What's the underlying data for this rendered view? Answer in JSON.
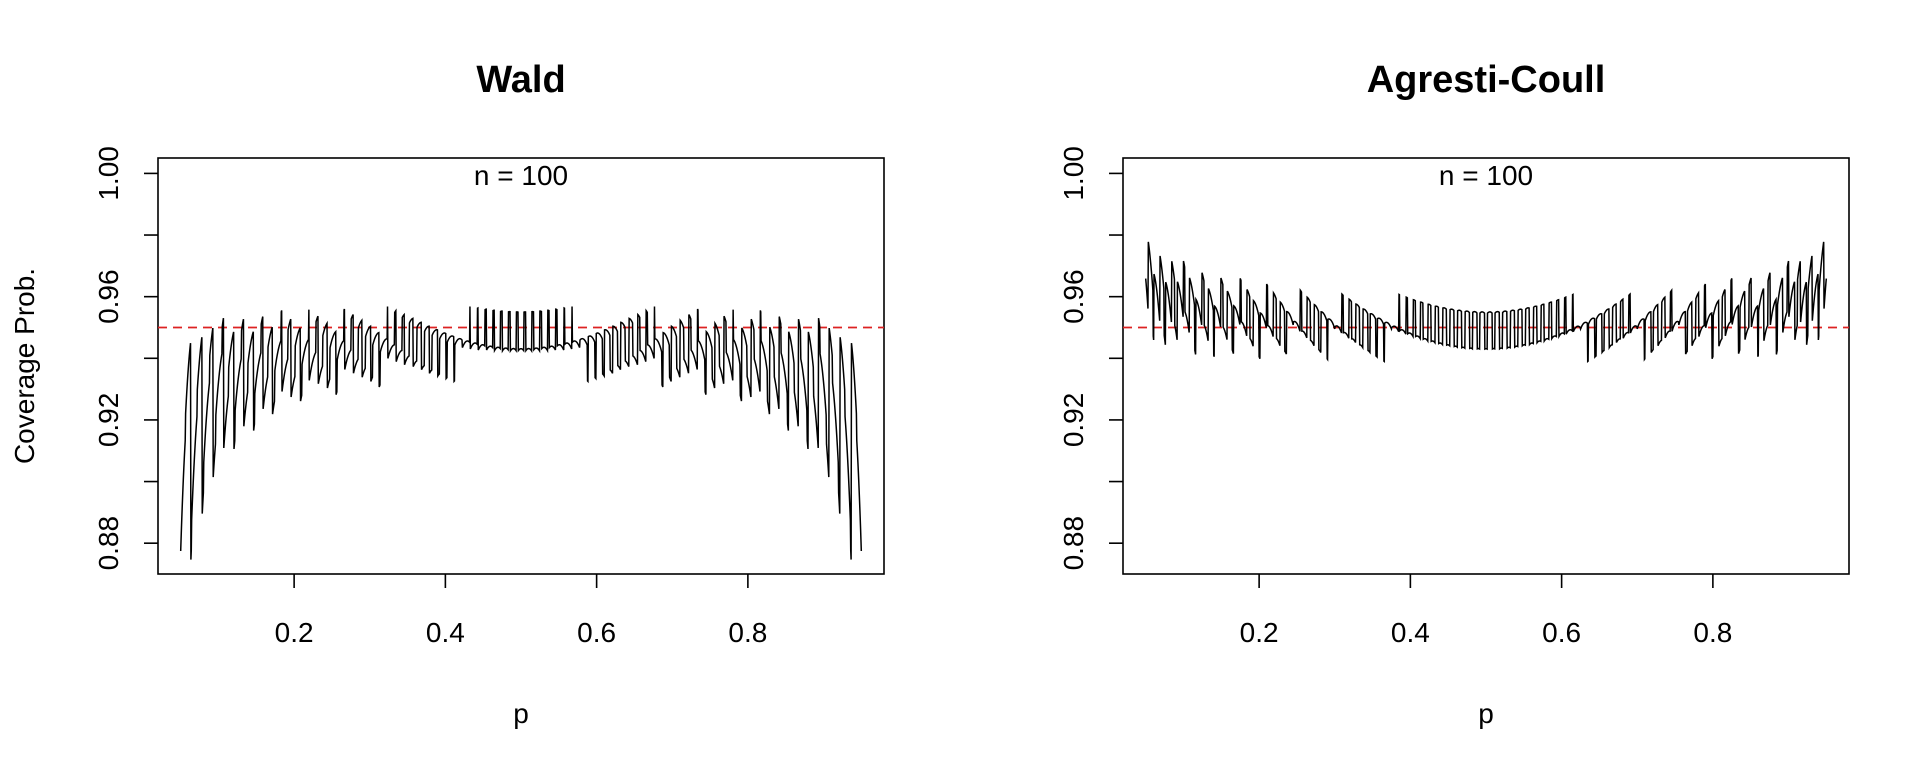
{
  "figure": {
    "ylabel": "Coverage Prob.",
    "ylabel_shared": true
  },
  "chart_data": [
    {
      "type": "line",
      "title": "Wald",
      "annotation": "n = 100",
      "xlabel": "p",
      "ylabel": "Coverage Prob.",
      "xlim": [
        0.02,
        0.98
      ],
      "ylim": [
        0.87,
        1.005
      ],
      "xticks": [
        0.2,
        0.4,
        0.6,
        0.8
      ],
      "xtick_labels": [
        "0.2",
        "0.4",
        "0.6",
        "0.8"
      ],
      "yticks": [
        0.88,
        0.9,
        0.92,
        0.94,
        0.96,
        0.98,
        1.0
      ],
      "ytick_labels": [
        "0.88",
        "",
        "0.92",
        "",
        "0.96",
        "",
        "1.00"
      ],
      "n": 100,
      "p_range": [
        0.05,
        0.95
      ],
      "method": "wald",
      "series": [
        {
          "color": "#000000",
          "style": "solid",
          "description_values": "coverage probability of Wald 95% interval for binomial p, n=100"
        }
      ],
      "reference_line": {
        "y": 0.95,
        "color": "#dd2222",
        "style": "dashed"
      },
      "grid": false,
      "legend": "none"
    },
    {
      "type": "line",
      "title": "Agresti-Coull",
      "annotation": "n = 100",
      "xlabel": "p",
      "ylabel": "",
      "xlim": [
        0.02,
        0.98
      ],
      "ylim": [
        0.87,
        1.005
      ],
      "xticks": [
        0.2,
        0.4,
        0.6,
        0.8
      ],
      "xtick_labels": [
        "0.2",
        "0.4",
        "0.6",
        "0.8"
      ],
      "yticks": [
        0.88,
        0.9,
        0.92,
        0.94,
        0.96,
        0.98,
        1.0
      ],
      "ytick_labels": [
        "0.88",
        "",
        "0.92",
        "",
        "0.96",
        "",
        "1.00"
      ],
      "n": 100,
      "p_range": [
        0.05,
        0.95
      ],
      "method": "agresti-coull",
      "series": [
        {
          "color": "#000000",
          "style": "solid",
          "description_values": "coverage probability of Agresti-Coull 95% interval for binomial p, n=100"
        }
      ],
      "reference_line": {
        "y": 0.95,
        "color": "#dd2222",
        "style": "dashed"
      },
      "grid": false,
      "legend": "none"
    }
  ]
}
